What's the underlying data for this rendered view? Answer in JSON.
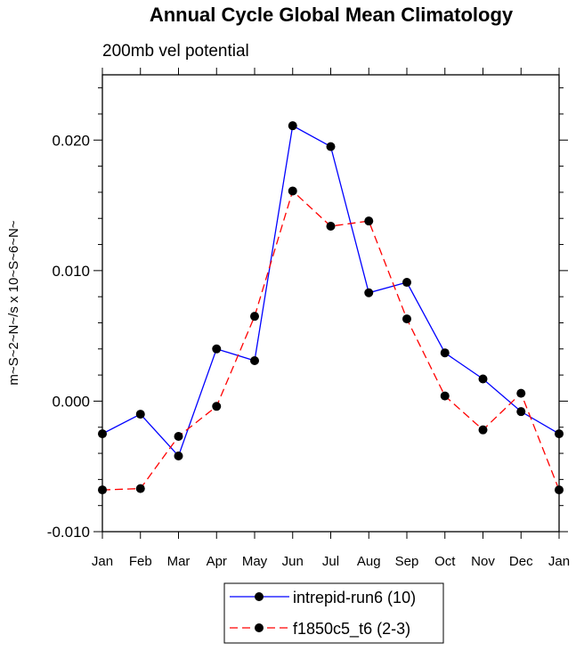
{
  "chart_data": {
    "type": "line",
    "title": "Annual Cycle Global Mean Climatology",
    "subtitle": "200mb vel potential",
    "xlabel": "",
    "ylabel": "m~S~2~N~/s x 10~S~6~N~",
    "categories": [
      "Jan",
      "Feb",
      "Mar",
      "Apr",
      "May",
      "Jun",
      "Jul",
      "Aug",
      "Sep",
      "Oct",
      "Nov",
      "Dec",
      "Jan"
    ],
    "ylim": [
      -0.01,
      0.025
    ],
    "yticks": [
      -0.01,
      0.0,
      0.01,
      0.02
    ],
    "ytick_labels": [
      "-0.010",
      "0.000",
      "0.010",
      "0.020"
    ],
    "yminor_step": 0.002,
    "grid": false,
    "legend_position": "bottom-center",
    "series": [
      {
        "name": "intrepid-run6 (10)",
        "color": "#0000ff",
        "dash": "solid",
        "values": [
          -0.0025,
          -0.001,
          -0.0042,
          0.004,
          0.0031,
          0.0211,
          0.0195,
          0.0083,
          0.0091,
          0.0037,
          0.0017,
          -0.0008,
          -0.0025
        ]
      },
      {
        "name": "f1850c5_t6 (2-3)",
        "color": "#ff0000",
        "dash": "dashed",
        "values": [
          -0.0068,
          -0.0067,
          -0.0027,
          -0.0004,
          0.0065,
          0.0161,
          0.0134,
          0.0138,
          0.0063,
          0.0004,
          -0.0022,
          0.0006,
          -0.0068
        ]
      }
    ]
  }
}
